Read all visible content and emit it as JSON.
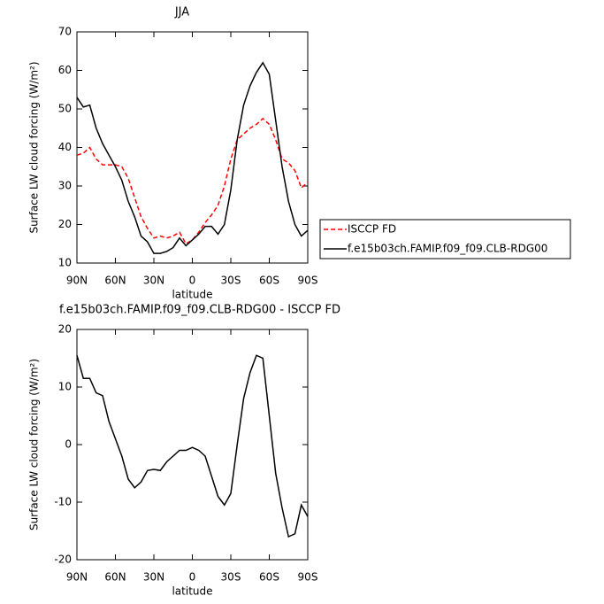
{
  "chart_data": [
    {
      "type": "line",
      "title": "JJA",
      "xlabel": "latitude",
      "ylabel": "Surface LW cloud forcing (W/m²)",
      "x": [
        90,
        85,
        80,
        75,
        70,
        65,
        60,
        55,
        50,
        45,
        40,
        35,
        30,
        25,
        20,
        15,
        10,
        5,
        0,
        -5,
        -10,
        -15,
        -20,
        -25,
        -30,
        -35,
        -40,
        -45,
        -50,
        -55,
        -60,
        -65,
        -70,
        -75,
        -80,
        -85,
        -90
      ],
      "xlim": [
        90,
        -90
      ],
      "xticks": [
        {
          "value": 90,
          "label": "90N"
        },
        {
          "value": 60,
          "label": "60N"
        },
        {
          "value": 30,
          "label": "30N"
        },
        0,
        {
          "value": -30,
          "label": "30S"
        },
        {
          "value": -60,
          "label": "60S"
        },
        {
          "value": -90,
          "label": "90S"
        }
      ],
      "ylim": [
        10,
        70
      ],
      "yticks": [
        10,
        20,
        30,
        40,
        50,
        60,
        70
      ],
      "legend": "right",
      "series": [
        {
          "name": "ISCCP FD",
          "color": "#ff0000",
          "dash": true,
          "values": [
            38,
            38.5,
            40,
            37,
            35.5,
            35.5,
            35.5,
            35,
            32,
            27,
            22,
            19,
            16.5,
            17,
            16.5,
            17,
            18,
            15,
            16,
            18,
            20.5,
            22.5,
            25,
            30,
            37,
            42,
            43.5,
            45,
            46,
            47.5,
            46,
            42,
            37,
            36,
            34,
            29.5,
            31
          ]
        },
        {
          "name": "f.e15b03ch.FAMIP.f09_f09.CLB-RDG00",
          "color": "#000000",
          "dash": false,
          "values": [
            53,
            50.5,
            51,
            45,
            41,
            38,
            35,
            31.5,
            26,
            22,
            17,
            15.5,
            12.5,
            12.5,
            13,
            14,
            16.5,
            14.5,
            16,
            17.5,
            19.5,
            19.5,
            17.5,
            20,
            29,
            42,
            51,
            56,
            59.5,
            62,
            59,
            47,
            35,
            26,
            20,
            17,
            18.5
          ]
        }
      ]
    },
    {
      "type": "line",
      "title": "f.e15b03ch.FAMIP.f09_f09.CLB-RDG00 - ISCCP FD",
      "xlabel": "latitude",
      "ylabel": "Surface LW cloud forcing (W/m²)",
      "x": [
        90,
        85,
        80,
        75,
        70,
        65,
        60,
        55,
        50,
        45,
        40,
        35,
        30,
        25,
        20,
        15,
        10,
        5,
        0,
        -5,
        -10,
        -15,
        -20,
        -25,
        -30,
        -35,
        -40,
        -45,
        -50,
        -55,
        -60,
        -65,
        -70,
        -75,
        -80,
        -85,
        -90
      ],
      "xlim": [
        90,
        -90
      ],
      "xticks": [
        {
          "value": 90,
          "label": "90N"
        },
        {
          "value": 60,
          "label": "60N"
        },
        {
          "value": 30,
          "label": "30N"
        },
        0,
        {
          "value": -30,
          "label": "30S"
        },
        {
          "value": -60,
          "label": "60S"
        },
        {
          "value": -90,
          "label": "90S"
        }
      ],
      "ylim": [
        -20,
        20
      ],
      "yticks": [
        -20,
        -10,
        0,
        10,
        20
      ],
      "series": [
        {
          "color": "#000000",
          "dash": false,
          "values": [
            15.5,
            11.5,
            11.5,
            9,
            8.5,
            4,
            1,
            -2,
            -6,
            -7.5,
            -6.5,
            -4.5,
            -4.3,
            -4.5,
            -3,
            -2,
            -1,
            -1,
            -0.5,
            -1,
            -2,
            -5.5,
            -9,
            -10.5,
            -8.5,
            0,
            8,
            12.5,
            15.5,
            15,
            5,
            -5,
            -11,
            -16,
            -15.5,
            -10.5,
            -12.5
          ]
        }
      ]
    }
  ]
}
